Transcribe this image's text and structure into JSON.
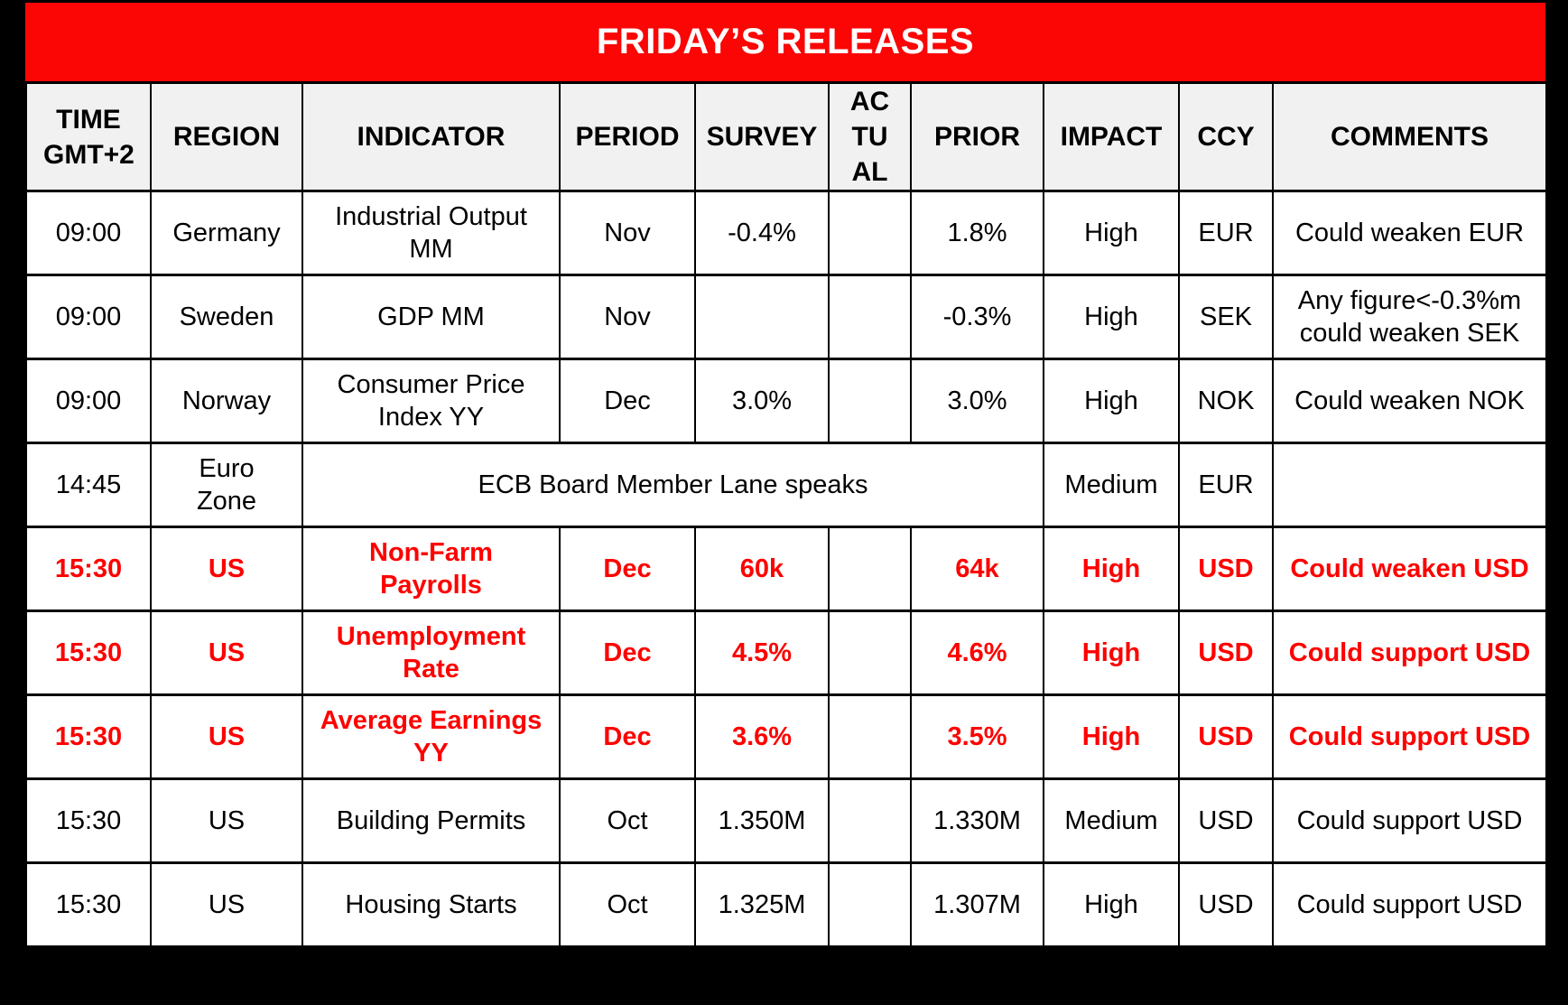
{
  "title_bar": {
    "label": "FRIDAY’S RELEASES"
  },
  "table": {
    "columns": [
      "TIME GMT+2",
      "REGION",
      "INDICATOR",
      "PERIOD",
      "SURVEY",
      "ACTUAL",
      "PRIOR",
      "IMPACT",
      "CCY",
      "COMMENTS"
    ],
    "rows": [
      {
        "time": "09:00",
        "region": "Germany",
        "indicator": "Industrial Output MM",
        "period": "Nov",
        "survey": "-0.4%",
        "actual": "",
        "prior": "1.8%",
        "impact": "High",
        "ccy": "EUR",
        "comments": "Could weaken EUR",
        "highlight": false,
        "merged": false
      },
      {
        "time": "09:00",
        "region": "Sweden",
        "indicator": "GDP MM",
        "period": "Nov",
        "survey": "",
        "actual": "",
        "prior": "-0.3%",
        "impact": "High",
        "ccy": "SEK",
        "comments": "Any figure<-0.3%m could weaken SEK",
        "highlight": false,
        "merged": false
      },
      {
        "time": "09:00",
        "region": "Norway",
        "indicator": "Consumer Price Index YY",
        "period": "Dec",
        "survey": "3.0%",
        "actual": "",
        "prior": "3.0%",
        "impact": "High",
        "ccy": "NOK",
        "comments": "Could weaken NOK",
        "highlight": false,
        "merged": false
      },
      {
        "time": "14:45",
        "region": "Euro\nZone",
        "event": "ECB Board Member Lane speaks",
        "impact": "Medium",
        "ccy": "EUR",
        "comments": "",
        "highlight": false,
        "merged": true
      },
      {
        "time": "15:30",
        "region": "US",
        "indicator": "Non-Farm Payrolls",
        "period": "Dec",
        "survey": "60k",
        "actual": "",
        "prior": "64k",
        "impact": "High",
        "ccy": "USD",
        "comments": "Could weaken USD",
        "highlight": true,
        "merged": false
      },
      {
        "time": "15:30",
        "region": "US",
        "indicator": "Unemployment Rate",
        "period": "Dec",
        "survey": "4.5%",
        "actual": "",
        "prior": "4.6%",
        "impact": "High",
        "ccy": "USD",
        "comments": "Could support USD",
        "highlight": true,
        "merged": false
      },
      {
        "time": "15:30",
        "region": "US",
        "indicator": "Average Earnings YY",
        "period": "Dec",
        "survey": "3.6%",
        "actual": "",
        "prior": "3.5%",
        "impact": "High",
        "ccy": "USD",
        "comments": "Could support USD",
        "highlight": true,
        "merged": false
      },
      {
        "time": "15:30",
        "region": "US",
        "indicator": "Building Permits",
        "period": "Oct",
        "survey": "1.350M",
        "actual": "",
        "prior": "1.330M",
        "impact": "Medium",
        "ccy": "USD",
        "comments": "Could support USD",
        "highlight": false,
        "merged": false
      },
      {
        "time": "15:30",
        "region": "US",
        "indicator": "Housing Starts",
        "period": "Oct",
        "survey": "1.325M",
        "actual": "",
        "prior": "1.307M",
        "impact": "High",
        "ccy": "USD",
        "comments": "Could support USD",
        "highlight": false,
        "merged": false
      }
    ]
  },
  "colors": {
    "page_bg": "#000000",
    "title_bg": "#FB0505",
    "title_text": "#FFFFFF",
    "header_bg": "#F1F1F1",
    "cell_bg": "#FFFFFF",
    "body_text": "#000000",
    "highlight_text": "#FE0000",
    "border": "#000000"
  }
}
